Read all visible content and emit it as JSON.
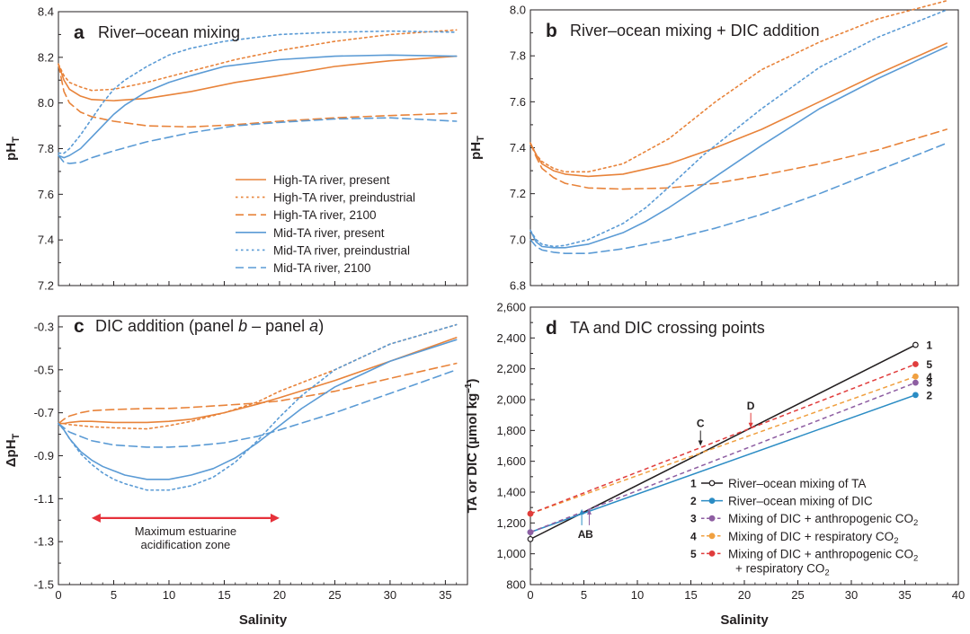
{
  "colors": {
    "orange": "#e8833a",
    "blue": "#5b9bd5",
    "black": "#231f20",
    "teal": "#2b8cc4",
    "purple": "#8e5ea2",
    "lightorange": "#f0a040",
    "red": "#e03c3c",
    "zone_red": "#e6313a"
  },
  "series_styles": [
    {
      "name": "High-TA river, present",
      "color": "orange",
      "dash": "solid"
    },
    {
      "name": "High-TA river, preindustrial",
      "color": "orange",
      "dash": "dot"
    },
    {
      "name": "High-TA river, 2100",
      "color": "orange",
      "dash": "dash"
    },
    {
      "name": "Mid-TA river, present",
      "color": "blue",
      "dash": "solid"
    },
    {
      "name": "Mid-TA river, preindustrial",
      "color": "blue",
      "dash": "dot"
    },
    {
      "name": "Mid-TA river, 2100",
      "color": "blue",
      "dash": "dash"
    }
  ],
  "chart_data": [
    {
      "panel": "a",
      "type": "line",
      "title": "River–ocean mixing",
      "xlabel": "",
      "ylabel": "pH",
      "ylabel_sub": "T",
      "xlim": [
        0,
        37
      ],
      "ylim": [
        7.2,
        8.4
      ],
      "yticks": [
        7.2,
        7.4,
        7.6,
        7.8,
        8.0,
        8.2,
        8.4
      ],
      "ytick_labels": [
        "7.2",
        "7.4",
        "7.6",
        "7.8",
        "8.0",
        "8.2",
        "8.4"
      ],
      "grid": false,
      "legend_position": "bottom-right",
      "series": [
        {
          "name": "High-TA river, present",
          "x": [
            0,
            0.5,
            1,
            2,
            3,
            5,
            8,
            12,
            16,
            20,
            25,
            30,
            36
          ],
          "y": [
            8.17,
            8.1,
            8.06,
            8.03,
            8.015,
            8.01,
            8.02,
            8.05,
            8.09,
            8.12,
            8.16,
            8.185,
            8.205
          ]
        },
        {
          "name": "High-TA river, preindustrial",
          "x": [
            0,
            0.5,
            1,
            2,
            3,
            5,
            8,
            12,
            16,
            20,
            25,
            30,
            36
          ],
          "y": [
            8.17,
            8.12,
            8.09,
            8.07,
            8.055,
            8.06,
            8.09,
            8.14,
            8.19,
            8.23,
            8.27,
            8.3,
            8.32
          ]
        },
        {
          "name": "High-TA river, 2100",
          "x": [
            0,
            0.5,
            1,
            2,
            3,
            5,
            8,
            12,
            16,
            20,
            25,
            30,
            36
          ],
          "y": [
            8.17,
            8.05,
            8.0,
            7.96,
            7.94,
            7.92,
            7.9,
            7.895,
            7.905,
            7.92,
            7.935,
            7.945,
            7.955
          ]
        },
        {
          "name": "Mid-TA river, present",
          "x": [
            0,
            0.5,
            1,
            2,
            3,
            4,
            5,
            6,
            8,
            10,
            12,
            15,
            20,
            25,
            30,
            36
          ],
          "y": [
            7.77,
            7.76,
            7.77,
            7.8,
            7.85,
            7.9,
            7.95,
            7.99,
            8.05,
            8.09,
            8.12,
            8.16,
            8.19,
            8.205,
            8.21,
            8.205
          ]
        },
        {
          "name": "Mid-TA river, preindustrial",
          "x": [
            0,
            0.5,
            1,
            2,
            3,
            4,
            5,
            6,
            8,
            10,
            12,
            15,
            20,
            25,
            30,
            36
          ],
          "y": [
            7.78,
            7.78,
            7.8,
            7.86,
            7.93,
            8.0,
            8.06,
            8.1,
            8.16,
            8.21,
            8.24,
            8.27,
            8.3,
            8.31,
            8.315,
            8.31
          ]
        },
        {
          "name": "Mid-TA river, 2100",
          "x": [
            0,
            0.5,
            1,
            2,
            3,
            5,
            8,
            12,
            16,
            20,
            25,
            30,
            36
          ],
          "y": [
            7.77,
            7.74,
            7.735,
            7.74,
            7.76,
            7.79,
            7.83,
            7.87,
            7.9,
            7.915,
            7.93,
            7.935,
            7.92
          ]
        }
      ]
    },
    {
      "panel": "b",
      "type": "line",
      "title": "River–ocean mixing + DIC addition",
      "xlabel": "",
      "ylabel": "pH",
      "ylabel_sub": "T",
      "xlim": [
        0,
        37
      ],
      "ylim": [
        6.8,
        8.0
      ],
      "yticks": [
        6.8,
        7.0,
        7.2,
        7.4,
        7.6,
        7.8,
        8.0
      ],
      "ytick_labels": [
        "6.8",
        "7.0",
        "7.2",
        "7.4",
        "7.6",
        "7.8",
        "8.0"
      ],
      "grid": false,
      "series": [
        {
          "name": "High-TA river, present",
          "x": [
            0,
            0.5,
            1,
            2,
            3,
            5,
            8,
            12,
            16,
            20,
            25,
            30,
            36
          ],
          "y": [
            7.42,
            7.37,
            7.33,
            7.3,
            7.285,
            7.275,
            7.285,
            7.33,
            7.4,
            7.48,
            7.6,
            7.72,
            7.855
          ]
        },
        {
          "name": "High-TA river, preindustrial",
          "x": [
            0,
            0.5,
            1,
            2,
            3,
            5,
            8,
            12,
            16,
            20,
            25,
            30,
            36
          ],
          "y": [
            7.42,
            7.37,
            7.34,
            7.31,
            7.295,
            7.295,
            7.33,
            7.44,
            7.6,
            7.74,
            7.86,
            7.96,
            8.04
          ]
        },
        {
          "name": "High-TA river, 2100",
          "x": [
            0,
            0.5,
            1,
            2,
            3,
            5,
            8,
            12,
            16,
            20,
            25,
            30,
            36
          ],
          "y": [
            7.42,
            7.36,
            7.31,
            7.27,
            7.245,
            7.225,
            7.22,
            7.225,
            7.245,
            7.28,
            7.33,
            7.39,
            7.48
          ]
        },
        {
          "name": "Mid-TA river, present",
          "x": [
            0,
            0.5,
            1,
            2,
            3,
            5,
            8,
            10,
            12,
            15,
            20,
            25,
            30,
            36
          ],
          "y": [
            7.04,
            6.99,
            6.97,
            6.965,
            6.965,
            6.98,
            7.03,
            7.08,
            7.14,
            7.24,
            7.41,
            7.57,
            7.7,
            7.84
          ]
        },
        {
          "name": "Mid-TA river, preindustrial",
          "x": [
            0,
            0.5,
            1,
            2,
            3,
            5,
            8,
            10,
            12,
            15,
            20,
            25,
            30,
            36
          ],
          "y": [
            7.04,
            7.0,
            6.98,
            6.97,
            6.975,
            7.0,
            7.07,
            7.14,
            7.23,
            7.37,
            7.57,
            7.75,
            7.88,
            8.0
          ]
        },
        {
          "name": "Mid-TA river, 2100",
          "x": [
            0,
            0.5,
            1,
            2,
            3,
            5,
            8,
            12,
            16,
            20,
            25,
            30,
            36
          ],
          "y": [
            7.0,
            6.97,
            6.955,
            6.945,
            6.94,
            6.94,
            6.96,
            7.0,
            7.05,
            7.11,
            7.2,
            7.3,
            7.42
          ]
        }
      ]
    },
    {
      "panel": "c",
      "type": "line",
      "title_parts": [
        "DIC addition (panel ",
        "b",
        " – panel ",
        "a",
        ")"
      ],
      "xlabel": "Salinity",
      "ylabel": "ΔpH",
      "ylabel_sub": "T",
      "xlim": [
        0,
        37
      ],
      "ylim": [
        -1.5,
        -0.25
      ],
      "xticks": [
        0,
        5,
        10,
        15,
        20,
        25,
        30,
        35
      ],
      "xtick_labels": [
        "0",
        "5",
        "10",
        "15",
        "20",
        "25",
        "30",
        "35"
      ],
      "yticks": [
        -1.5,
        -1.3,
        -1.1,
        -0.9,
        -0.7,
        -0.5,
        -0.3
      ],
      "ytick_labels": [
        "-1.5",
        "-1.3",
        "-1.1",
        "-0.9",
        "-0.7",
        "-0.5",
        "-0.3"
      ],
      "grid": false,
      "annotation": {
        "text_lines": [
          "Maximum estuarine",
          "acidification zone"
        ],
        "x_range": [
          3,
          20
        ],
        "y": -1.19
      },
      "series": [
        {
          "name": "High-TA river, present",
          "x": [
            0,
            0.5,
            1,
            2,
            3,
            5,
            8,
            10,
            12,
            15,
            18,
            20,
            25,
            30,
            36
          ],
          "y": [
            -0.75,
            -0.75,
            -0.745,
            -0.74,
            -0.74,
            -0.745,
            -0.745,
            -0.74,
            -0.73,
            -0.7,
            -0.66,
            -0.63,
            -0.55,
            -0.46,
            -0.35
          ]
        },
        {
          "name": "High-TA river, preindustrial",
          "x": [
            0,
            0.5,
            1,
            2,
            3,
            5,
            8,
            10,
            12,
            15,
            18,
            20,
            25,
            30,
            36
          ],
          "y": [
            -0.75,
            -0.75,
            -0.755,
            -0.76,
            -0.765,
            -0.77,
            -0.775,
            -0.76,
            -0.74,
            -0.7,
            -0.65,
            -0.6,
            -0.5,
            -0.38,
            -0.29
          ]
        },
        {
          "name": "High-TA river, 2100",
          "x": [
            0,
            0.5,
            1,
            2,
            3,
            5,
            8,
            10,
            12,
            15,
            18,
            20,
            25,
            30,
            36
          ],
          "y": [
            -0.75,
            -0.73,
            -0.715,
            -0.7,
            -0.69,
            -0.685,
            -0.68,
            -0.68,
            -0.675,
            -0.665,
            -0.655,
            -0.645,
            -0.6,
            -0.54,
            -0.47
          ]
        },
        {
          "name": "Mid-TA river, present",
          "x": [
            0,
            0.5,
            1,
            2,
            3,
            4,
            5,
            6,
            8,
            10,
            12,
            14,
            16,
            18,
            20,
            22,
            25,
            30,
            36
          ],
          "y": [
            -0.75,
            -0.78,
            -0.82,
            -0.88,
            -0.92,
            -0.95,
            -0.97,
            -0.99,
            -1.01,
            -1.01,
            -0.99,
            -0.96,
            -0.91,
            -0.84,
            -0.76,
            -0.68,
            -0.58,
            -0.46,
            -0.36
          ]
        },
        {
          "name": "Mid-TA river, preindustrial",
          "x": [
            0,
            0.5,
            1,
            2,
            3,
            4,
            5,
            6,
            8,
            10,
            12,
            14,
            16,
            18,
            20,
            22,
            25,
            30,
            36
          ],
          "y": [
            -0.75,
            -0.78,
            -0.82,
            -0.89,
            -0.94,
            -0.98,
            -1.01,
            -1.03,
            -1.06,
            -1.06,
            -1.04,
            -1.0,
            -0.93,
            -0.83,
            -0.72,
            -0.62,
            -0.5,
            -0.38,
            -0.29
          ]
        },
        {
          "name": "Mid-TA river, 2100",
          "x": [
            0,
            0.5,
            1,
            2,
            3,
            5,
            8,
            10,
            12,
            15,
            18,
            20,
            25,
            30,
            36
          ],
          "y": [
            -0.75,
            -0.77,
            -0.79,
            -0.81,
            -0.83,
            -0.85,
            -0.86,
            -0.86,
            -0.855,
            -0.84,
            -0.81,
            -0.78,
            -0.7,
            -0.61,
            -0.5
          ]
        }
      ]
    },
    {
      "panel": "d",
      "type": "line",
      "title": "TA and DIC crossing points",
      "xlabel": "Salinity",
      "ylabel": "TA or DIC (µmol kg",
      "ylabel_sup": "–1",
      "ylabel_end": ")",
      "xlim": [
        0,
        40
      ],
      "ylim": [
        800,
        2600
      ],
      "xticks": [
        0,
        5,
        10,
        15,
        20,
        25,
        30,
        35,
        40
      ],
      "xtick_labels": [
        "0",
        "5",
        "10",
        "15",
        "20",
        "25",
        "30",
        "35",
        "40"
      ],
      "yticks": [
        800,
        1000,
        1200,
        1400,
        1600,
        1800,
        2000,
        2200,
        2400,
        2600
      ],
      "ytick_labels": [
        "800",
        "1,000",
        "1,200",
        "1,400",
        "1,600",
        "1,800",
        "2,000",
        "2,200",
        "2,400",
        "2,600"
      ],
      "grid": false,
      "legend_position": "bottom-right",
      "series": [
        {
          "id": "1",
          "name": "River–ocean mixing of TA",
          "x": [
            0,
            36
          ],
          "y": [
            1095,
            2355
          ],
          "color": "black",
          "dash": "solid"
        },
        {
          "id": "2",
          "name": "River–ocean mixing of DIC",
          "x": [
            0,
            36
          ],
          "y": [
            1140,
            2030
          ],
          "color": "teal",
          "dash": "solid"
        },
        {
          "id": "3",
          "name_parts": [
            "Mixing of DIC + anthropogenic CO",
            "2"
          ],
          "x": [
            0,
            36
          ],
          "y": [
            1140,
            2110
          ],
          "color": "purple",
          "dash": "dash"
        },
        {
          "id": "4",
          "name_parts": [
            "Mixing of DIC + respiratory CO",
            "2"
          ],
          "x": [
            0,
            36
          ],
          "y": [
            1260,
            2150
          ],
          "color": "lightorange",
          "dash": "dash"
        },
        {
          "id": "5",
          "name_parts": [
            "Mixing of DIC + anthropogenic CO",
            "2"
          ],
          "name_line2_parts": [
            "+ respiratory CO",
            "2"
          ],
          "x": [
            0,
            36
          ],
          "y": [
            1260,
            2230
          ],
          "color": "red",
          "dash": "dash"
        }
      ],
      "annotations": [
        {
          "label": "A",
          "x": 4.8,
          "color": "teal"
        },
        {
          "label": "B",
          "x": 5.5,
          "color": "purple"
        },
        {
          "label": "C",
          "x": 15.9,
          "color": "black"
        },
        {
          "label": "D",
          "x": 20.6,
          "color": "red"
        }
      ]
    }
  ]
}
